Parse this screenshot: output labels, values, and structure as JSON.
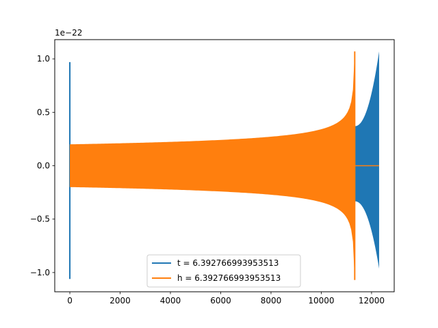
{
  "chart_data": {
    "type": "line",
    "title": "",
    "xlabel": "",
    "ylabel": "",
    "offset_text": "1e−22",
    "xlim": [
      -600,
      12900
    ],
    "ylim": [
      -1.18,
      1.18
    ],
    "x_ticks": [
      0,
      2000,
      4000,
      6000,
      8000,
      10000,
      12000
    ],
    "x_tick_labels": [
      "0",
      "2000",
      "4000",
      "6000",
      "8000",
      "10000",
      "12000"
    ],
    "y_ticks": [
      -1.0,
      -0.5,
      0.0,
      0.5,
      1.0
    ],
    "y_tick_labels": [
      "−1.0",
      "−0.5",
      "0.0",
      "0.5",
      "1.0"
    ],
    "grid": false,
    "legend_position": "lower center",
    "series": [
      {
        "name": "t = 6.392766993953513",
        "color": "#1f77b4",
        "spike": {
          "x": 0,
          "max": 0.97,
          "min": -1.06
        },
        "tail": {
          "x_start": 11330,
          "x_end": 12300,
          "amp_start": 0.37,
          "amp_end": 1.07
        }
      },
      {
        "name": "h = 6.392766993953513",
        "color": "#ff7f0e",
        "envelope": {
          "x_start": 0,
          "x_end": 11330,
          "amp_start": 0.2,
          "amp_end": 1.07
        },
        "flat_tail": {
          "x_start": 11340,
          "x_end": 12300,
          "value": 0
        }
      }
    ]
  }
}
